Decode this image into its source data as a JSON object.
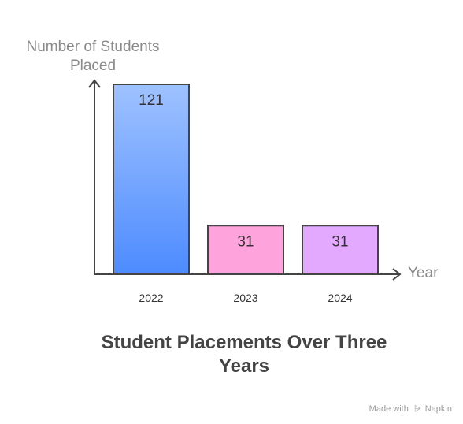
{
  "chart_data": {
    "type": "bar",
    "title": "Student Placements Over Three Years",
    "xlabel": "Year",
    "ylabel": "Number of Students Placed",
    "categories": [
      "2022",
      "2023",
      "2024"
    ],
    "values": [
      121,
      31,
      31
    ],
    "ylim": [
      0,
      121
    ],
    "grid": false,
    "legend": "none",
    "bar_colors": [
      {
        "fill_top": "#9fc2ff",
        "fill_bottom": "#4d8bff"
      },
      {
        "fill_top": "#ffa3dc",
        "fill_bottom": "#ffa3dc"
      },
      {
        "fill_top": "#e3a8ff",
        "fill_bottom": "#e3a8ff"
      }
    ],
    "axis_color": "#444444",
    "label_color": "#333333"
  },
  "watermark": {
    "made_with": "Made with",
    "brand": "Napkin"
  }
}
